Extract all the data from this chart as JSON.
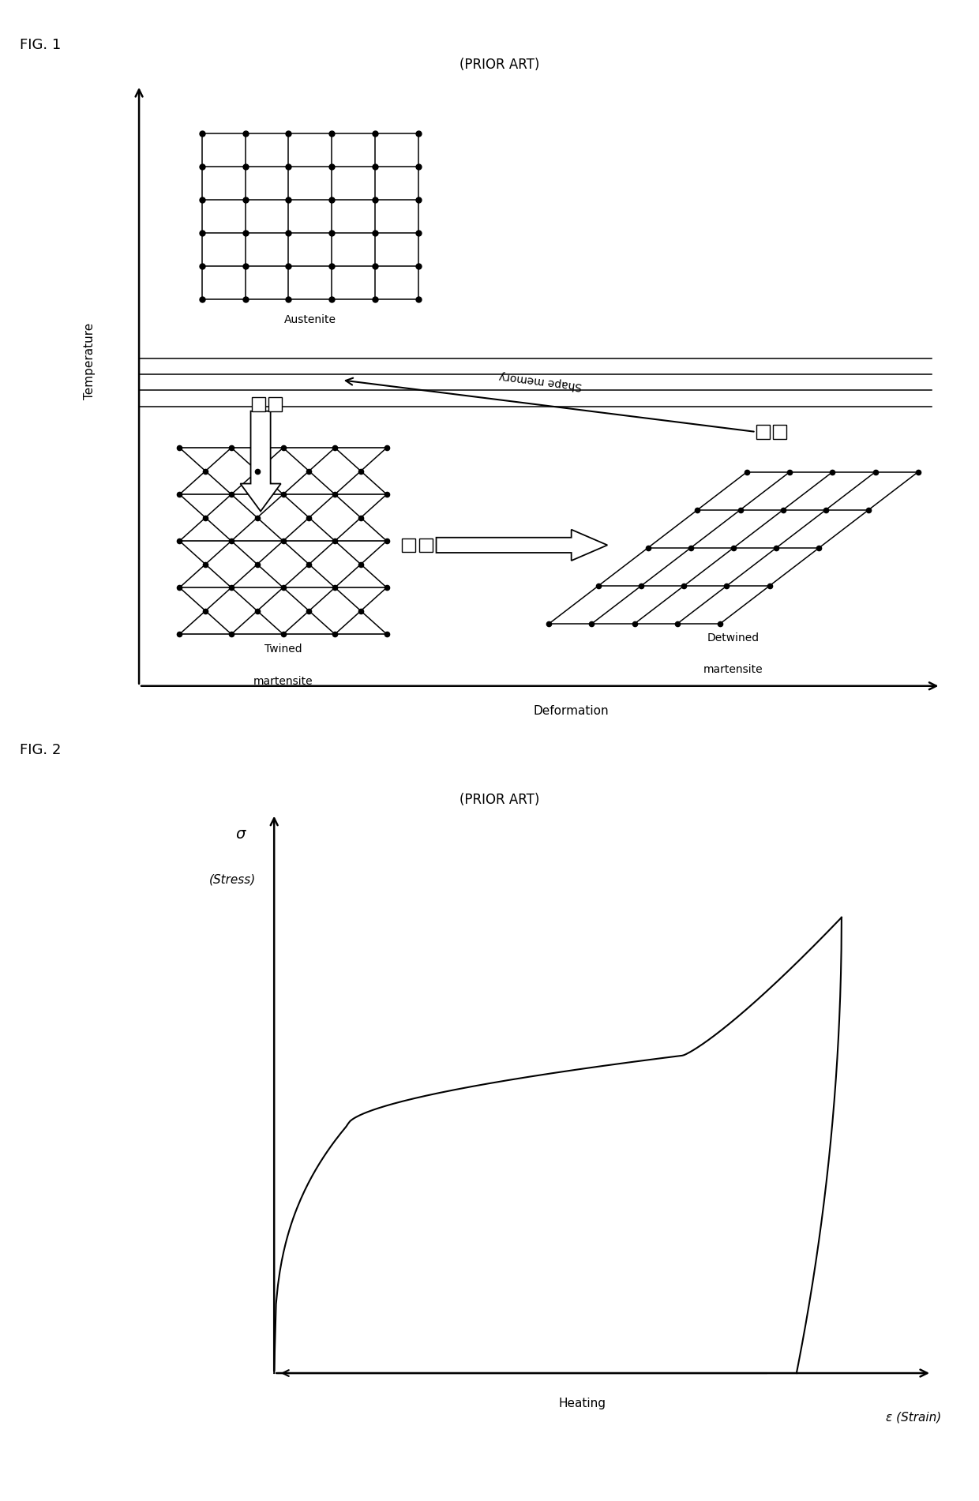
{
  "fig1_title": "FIG. 1",
  "fig1_subtitle": "(PRIOR ART)",
  "fig1_xlabel": "Deformation",
  "fig1_ylabel": "Temperature",
  "fig2_title": "FIG. 2",
  "fig2_subtitle": "(PRIOR ART)",
  "fig2_xlabel": "ε (Strain)",
  "fig2_sigma": "σ",
  "fig2_stress": "(Stress)",
  "heating_label": "Heating",
  "austenite_label": "Austenite",
  "twined_label1": "Twined",
  "twined_label2": "martensite",
  "detwined_label1": "Detwined",
  "detwined_label2": "martensite",
  "shape_memory_label": "Shape memory",
  "bg_color": "#ffffff",
  "line_color": "#000000",
  "fig_label_fontsize": 13,
  "subtitle_fontsize": 12,
  "axis_label_fontsize": 11,
  "annotation_fontsize": 10,
  "crystal_dot_size": 5
}
